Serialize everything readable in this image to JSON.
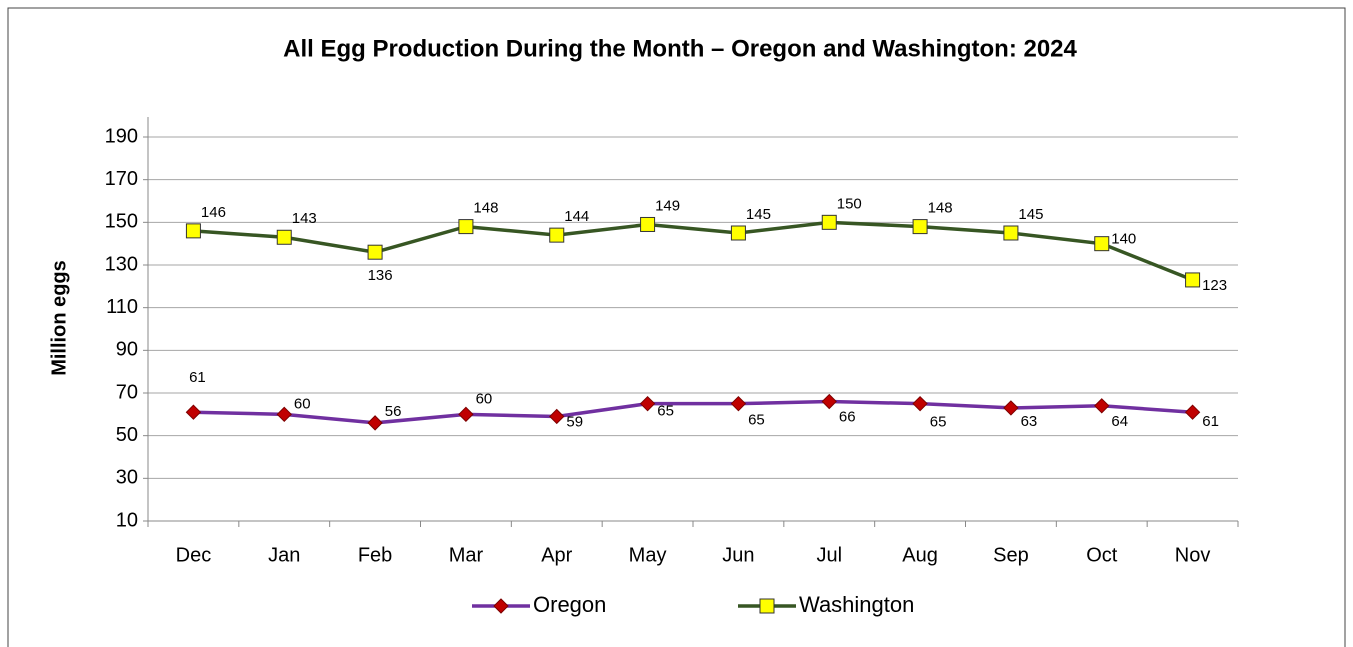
{
  "chart_data": {
    "type": "line",
    "title": "All Egg Production During the Month –  Oregon and Washington: 2024",
    "y_label": "Million eggs",
    "categories": [
      "Dec",
      "Jan",
      "Feb",
      "Mar",
      "Apr",
      "May",
      "Jun",
      "Jul",
      "Aug",
      "Sep",
      "Oct",
      "Nov"
    ],
    "series": [
      {
        "name": "Oregon",
        "color": "#7030a0",
        "marker": "diamond",
        "marker_color": "#c00000",
        "values": [
          61,
          60,
          56,
          60,
          59,
          65,
          65,
          66,
          65,
          63,
          64,
          61
        ]
      },
      {
        "name": "Washington",
        "color": "#375623",
        "marker": "square",
        "marker_color": "#ffff00",
        "values": [
          146,
          143,
          136,
          148,
          144,
          149,
          145,
          150,
          148,
          145,
          140,
          123
        ]
      }
    ],
    "ylim": [
      10,
      190
    ],
    "yticks": [
      10,
      30,
      50,
      70,
      90,
      110,
      130,
      150,
      170,
      190
    ],
    "grid": true,
    "legend": "bottom"
  }
}
